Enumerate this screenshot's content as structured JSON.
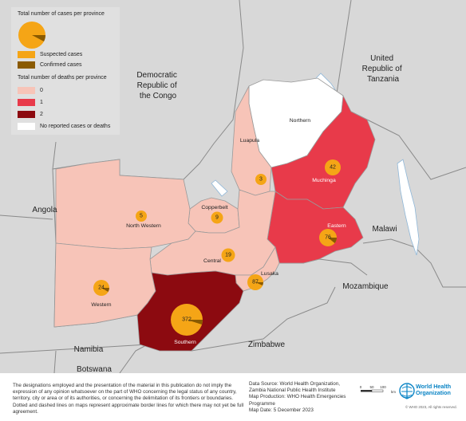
{
  "legend": {
    "title_cases": "Total number of cases per province",
    "suspected": "Suspected cases",
    "confirmed": "Confirmed cases",
    "title_deaths": "Total number of deaths per province",
    "deaths_0": "0",
    "deaths_1": "1",
    "deaths_2": "2",
    "no_reported": "No reported cases or deaths",
    "colors": {
      "suspected": "#f5a516",
      "confirmed": "#8a5a00",
      "deaths_0": "#f7c4b8",
      "deaths_1": "#e83a4a",
      "deaths_2": "#8c0a10",
      "none": "#ffffff"
    }
  },
  "countries": {
    "drc": [
      "Democratic",
      "Republic of",
      "the Congo"
    ],
    "tanzania": [
      "United",
      "Republic of",
      "Tanzania"
    ],
    "angola": "Angola",
    "malawi": "Malawi",
    "mozambique": "Mozambique",
    "zimbabwe": "Zimbabwe",
    "namibia": "Namibia",
    "botswana": "Botswana"
  },
  "provinces": {
    "northern": {
      "name": "Northern"
    },
    "luapula": {
      "name": "Luapula",
      "cases": "3"
    },
    "muchinga": {
      "name": "Muchinga",
      "cases": "42"
    },
    "eastern": {
      "name": "Eastern",
      "cases": "76"
    },
    "copperbelt": {
      "name": "Copperbelt",
      "cases": "9"
    },
    "north_western": {
      "name": "North Western",
      "cases": "5"
    },
    "central": {
      "name": "Central",
      "cases": "19"
    },
    "lusaka": {
      "name": "Lusaka",
      "cases": "87"
    },
    "western": {
      "name": "Western",
      "cases": "24"
    },
    "southern": {
      "name": "Southern",
      "cases": "372"
    }
  },
  "footer": {
    "disclaimer": "The designations employed and the presentation of the material in this publication do not imply the expression of any opinion whatsoever on the part of WHO concerning the legal status of any country, territory, city or area or of its authorities, or concerning the delimitation of its frontiers or boundaries. Dotted and dashed lines on maps represent approximate border lines for which there may not yet be full agreement.",
    "data_source": "Data Source: World Health Organization, Zambia National Public Health Institute",
    "map_production": "Map Production: WHO Health Emergencies Programme",
    "map_date": "Map Date: 5 December 2023",
    "scale_ticks": [
      "0",
      "50",
      "100"
    ],
    "scale_unit": "km",
    "who_name": [
      "World Health",
      "Organization"
    ],
    "copyright": "© WHO 2023, All rights reserved."
  }
}
